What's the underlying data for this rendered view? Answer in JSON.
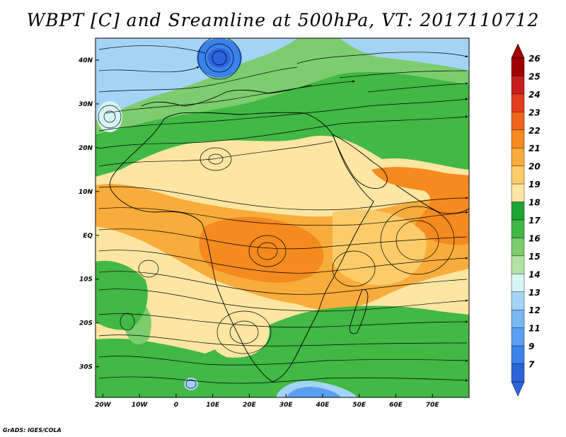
{
  "title": "WBPT [C] and Sreamline at 500hPa, VT: 2017110712",
  "credit": "GrADS: IGES/COLA",
  "map": {
    "lat_labels": [
      "40N",
      "30N",
      "20N",
      "10N",
      "EQ",
      "10S",
      "20S",
      "30S"
    ],
    "lat_values": [
      40,
      30,
      20,
      10,
      0,
      -10,
      -20,
      -30
    ],
    "lon_labels": [
      "20W",
      "10W",
      "0",
      "10E",
      "20E",
      "30E",
      "40E",
      "50E",
      "60E",
      "70E"
    ],
    "lon_values": [
      -20,
      -10,
      0,
      10,
      20,
      30,
      40,
      50,
      60,
      70
    ],
    "extent": {
      "lon": [
        -22,
        80
      ],
      "lat": [
        -37,
        45
      ]
    }
  },
  "colorbar": {
    "labels": [
      "26",
      "25",
      "24",
      "23",
      "22",
      "21",
      "20",
      "19",
      "18",
      "17",
      "16",
      "15",
      "14",
      "13",
      "12",
      "11",
      "9",
      "7"
    ],
    "colors": [
      "#a00000",
      "#c81e1e",
      "#e33b1e",
      "#f0641e",
      "#f58a1e",
      "#f8ac3c",
      "#fbcc69",
      "#fde6a2",
      "#1fa537",
      "#42b845",
      "#7ccd6e",
      "#b0e3a5",
      "#d7f5f5",
      "#a4d4f5",
      "#78b9f2",
      "#5a9ff0",
      "#3b82ea",
      "#2d64dc"
    ]
  },
  "colors": {
    "wbpt_7_9": "#2d64dc",
    "wbpt_13": "#a4d4f5",
    "wbpt_16": "#7ccd6e",
    "wbpt_17": "#42b845",
    "wbpt_19": "#fde6a2",
    "wbpt_20": "#fbcc69",
    "wbpt_21": "#f8ac3c",
    "wbpt_22": "#f58a1e",
    "streamline": "#000000",
    "coastline": "#000000"
  }
}
